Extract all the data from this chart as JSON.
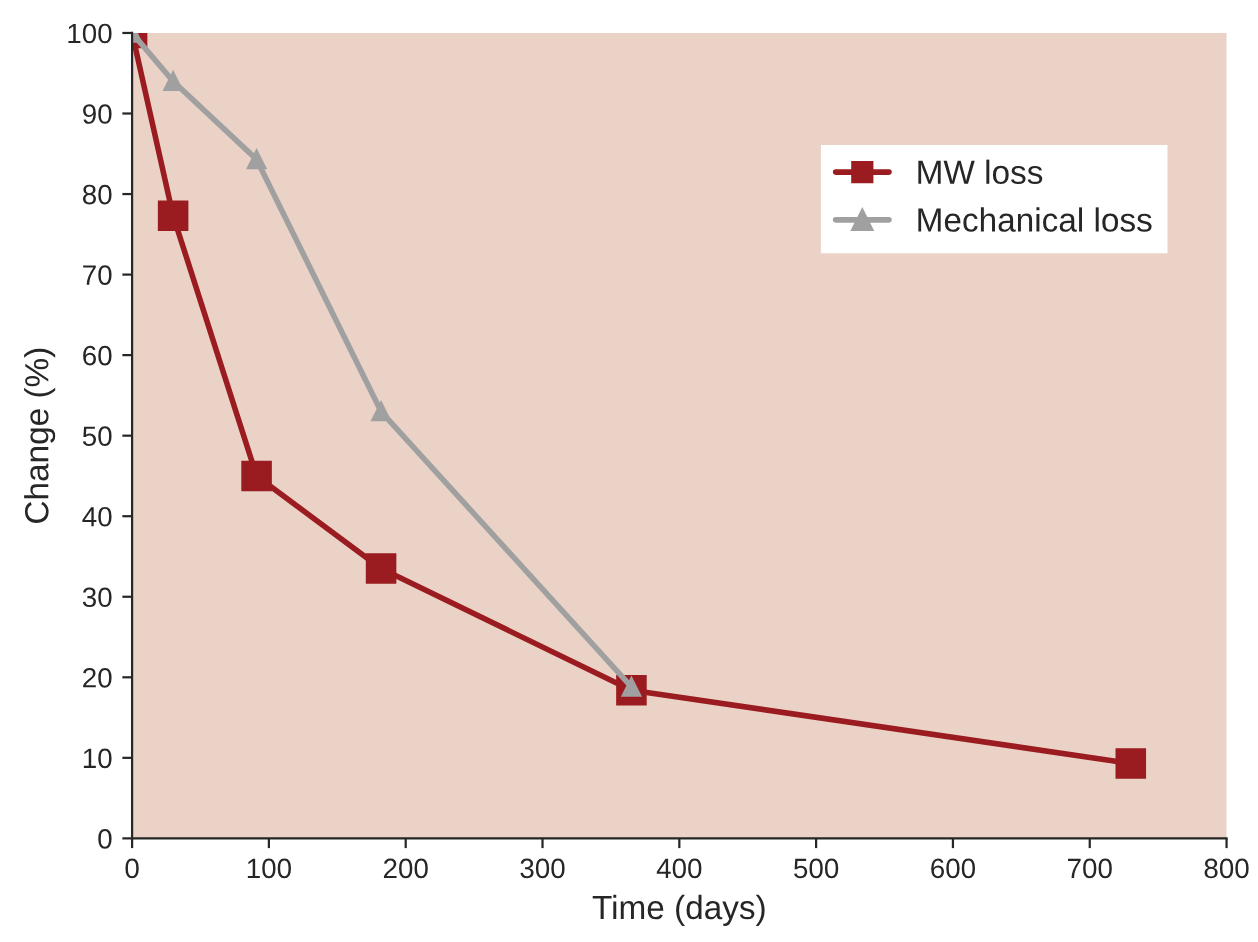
{
  "chart_data": {
    "type": "line",
    "xlabel": "Time (days)",
    "ylabel": "Change (%)",
    "series": [
      {
        "name": "MW loss",
        "color": "#9b1c20",
        "marker": "square",
        "x": [
          0,
          30,
          91,
          182,
          365,
          730
        ],
        "values": [
          100,
          77.3,
          45,
          33.5,
          18.4,
          9.3
        ]
      },
      {
        "name": "Mechanical loss",
        "color": "#a0a0a0",
        "marker": "triangle",
        "x": [
          0,
          30,
          91,
          182,
          365
        ],
        "values": [
          100,
          94,
          84.3,
          53,
          18.8
        ]
      }
    ],
    "xlim": [
      0,
      800
    ],
    "xticks": [
      0,
      100,
      200,
      300,
      400,
      500,
      600,
      700,
      800
    ],
    "ylim": [
      0,
      100
    ],
    "yticks": [
      0,
      10,
      20,
      30,
      40,
      50,
      60,
      70,
      80,
      90,
      100
    ],
    "grid": false,
    "legend": "top right",
    "line_style": "solid"
  }
}
